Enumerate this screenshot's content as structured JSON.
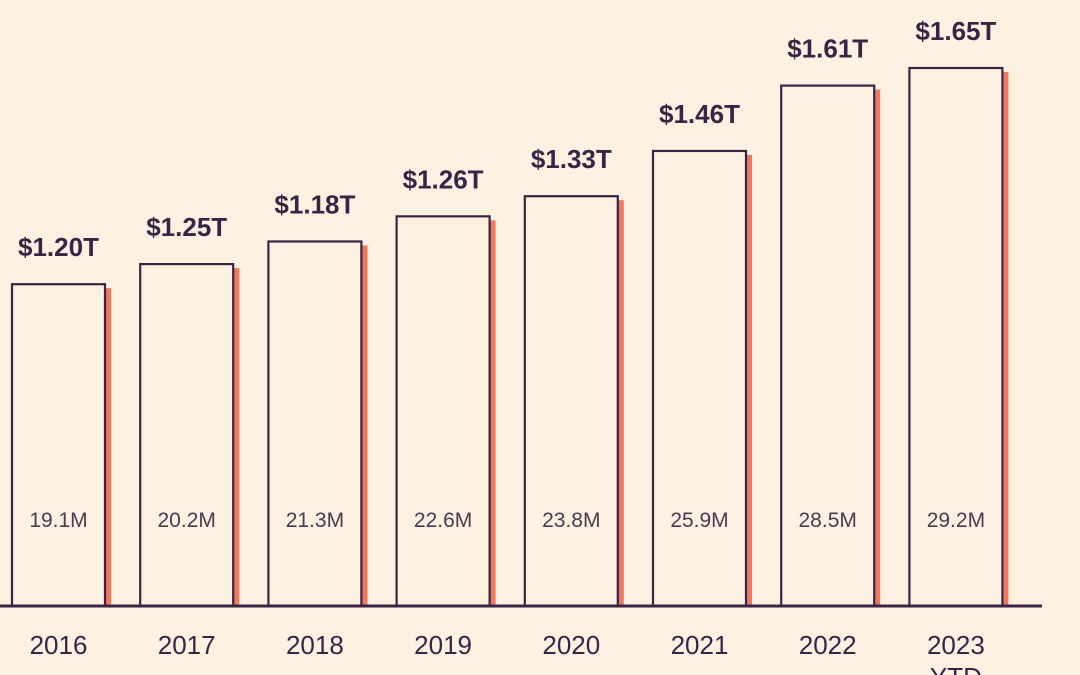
{
  "chart_data": {
    "type": "bar",
    "title": "",
    "xlabel": "",
    "ylabel": "",
    "categories": [
      "2016",
      "2017",
      "2018",
      "2019",
      "2020",
      "2021",
      "2022",
      "2023"
    ],
    "category_sublabels": [
      "",
      "",
      "",
      "",
      "",
      "",
      "",
      "YTD"
    ],
    "values": [
      1.2,
      1.25,
      1.18,
      1.26,
      1.33,
      1.46,
      1.61,
      1.65
    ],
    "bar_heights": [
      1.28,
      1.36,
      1.45,
      1.55,
      1.63,
      1.81,
      2.07,
      2.14
    ],
    "value_labels": [
      "$1.20T",
      "$1.25T",
      "$1.18T",
      "$1.26T",
      "$1.33T",
      "$1.46T",
      "$1.61T",
      "$1.65T"
    ],
    "secondary_labels": [
      "19.1M",
      "20.2M",
      "21.3M",
      "22.6M",
      "23.8M",
      "25.9M",
      "28.5M",
      "29.2M"
    ],
    "ylim": [
      0,
      2.14
    ],
    "grid": false,
    "colors": {
      "background": "#fdf1e1",
      "bar_fill": "#fdf1e1",
      "bar_outline": "#3a2446",
      "bar_shadow": "#f2785c",
      "text": "#3a2446"
    }
  }
}
